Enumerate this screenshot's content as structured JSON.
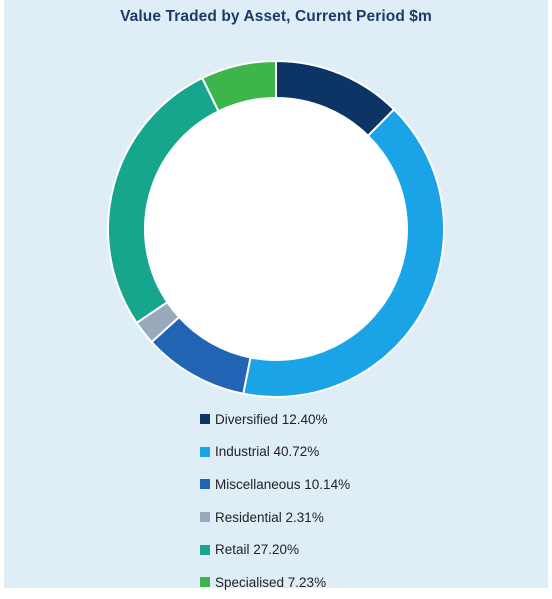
{
  "chart_data": {
    "type": "pie",
    "title": "Value Traded by Asset, Current Period $m",
    "categories": [
      "Diversified",
      "Industrial",
      "Miscellaneous",
      "Residential",
      "Retail",
      "Specialised"
    ],
    "values": [
      12.4,
      40.72,
      10.14,
      2.31,
      27.2,
      7.23
    ],
    "value_labels": [
      "12.40%",
      "40.72%",
      "10.14%",
      "2.31%",
      "27.20%",
      "7.23%"
    ],
    "colors": [
      "#0c3566",
      "#1aa3e6",
      "#2264b4",
      "#98a9bb",
      "#16a68e",
      "#3db54a"
    ],
    "donut": true,
    "legend_position": "bottom"
  }
}
